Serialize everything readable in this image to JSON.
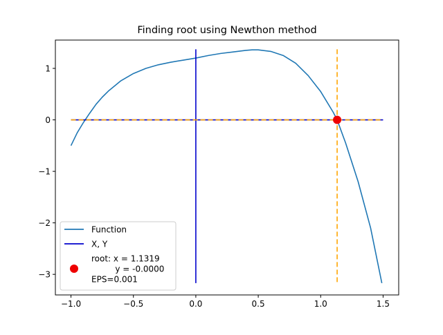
{
  "chart_data": {
    "type": "line",
    "title": "Finding root using Newthon method",
    "xlabel": "",
    "ylabel": "",
    "xlim": [
      -1.125,
      1.625
    ],
    "ylim": [
      -3.4,
      1.55
    ],
    "xticks": [
      -1.0,
      -0.5,
      0.0,
      0.5,
      1.0,
      1.5
    ],
    "xtick_labels": [
      "−1.0",
      "−0.5",
      "0.0",
      "0.5",
      "1.0",
      "1.5"
    ],
    "yticks": [
      1,
      0,
      -1,
      -2,
      -3
    ],
    "ytick_labels": [
      "1",
      "0",
      "−1",
      "−2",
      "−3"
    ],
    "grid": false,
    "legend_position": "lower-left",
    "series": [
      {
        "name": "Function",
        "color": "#1f77b4",
        "style": "solid",
        "x": [
          -1.0,
          -0.95,
          -0.9,
          -0.85,
          -0.8,
          -0.75,
          -0.7,
          -0.6,
          -0.5,
          -0.4,
          -0.3,
          -0.2,
          -0.1,
          0.0,
          0.1,
          0.2,
          0.3,
          0.4,
          0.45,
          0.5,
          0.6,
          0.7,
          0.8,
          0.9,
          1.0,
          1.1,
          1.1319,
          1.2,
          1.3,
          1.4,
          1.49
        ],
        "y": [
          -0.5,
          -0.25,
          -0.05,
          0.13,
          0.3,
          0.44,
          0.56,
          0.76,
          0.9,
          1.0,
          1.07,
          1.12,
          1.16,
          1.2,
          1.25,
          1.29,
          1.32,
          1.35,
          1.36,
          1.36,
          1.33,
          1.25,
          1.1,
          0.86,
          0.55,
          0.15,
          0.0,
          -0.45,
          -1.2,
          -2.1,
          -3.17
        ]
      },
      {
        "name": "X, Y",
        "color": "#0000cc",
        "style": "solid",
        "segments": [
          {
            "x": [
              -1.0,
              1.5
            ],
            "y": [
              0,
              0
            ]
          },
          {
            "x": [
              0,
              0
            ],
            "y": [
              1.37,
              -3.17
            ]
          }
        ]
      },
      {
        "color": "#ffa500",
        "style": "dashed",
        "segments": [
          {
            "x": [
              -1.0,
              1.5
            ],
            "y": [
              0,
              0
            ]
          },
          {
            "x": [
              1.1319,
              1.1319
            ],
            "y": [
              1.37,
              -3.17
            ]
          }
        ]
      }
    ],
    "points": [
      {
        "name": "root",
        "x": 1.1319,
        "y": 0.0,
        "color": "#ee0000"
      }
    ],
    "legend": [
      {
        "type": "line",
        "color": "#1f77b4",
        "label_lines": [
          "Function"
        ]
      },
      {
        "type": "line",
        "color": "#0000cc",
        "label_lines": [
          "X, Y"
        ]
      },
      {
        "type": "marker",
        "color": "#ee0000",
        "label_lines": [
          "root: x = 1.1319",
          "         y = -0.0000",
          "EPS=0.001"
        ]
      }
    ]
  }
}
